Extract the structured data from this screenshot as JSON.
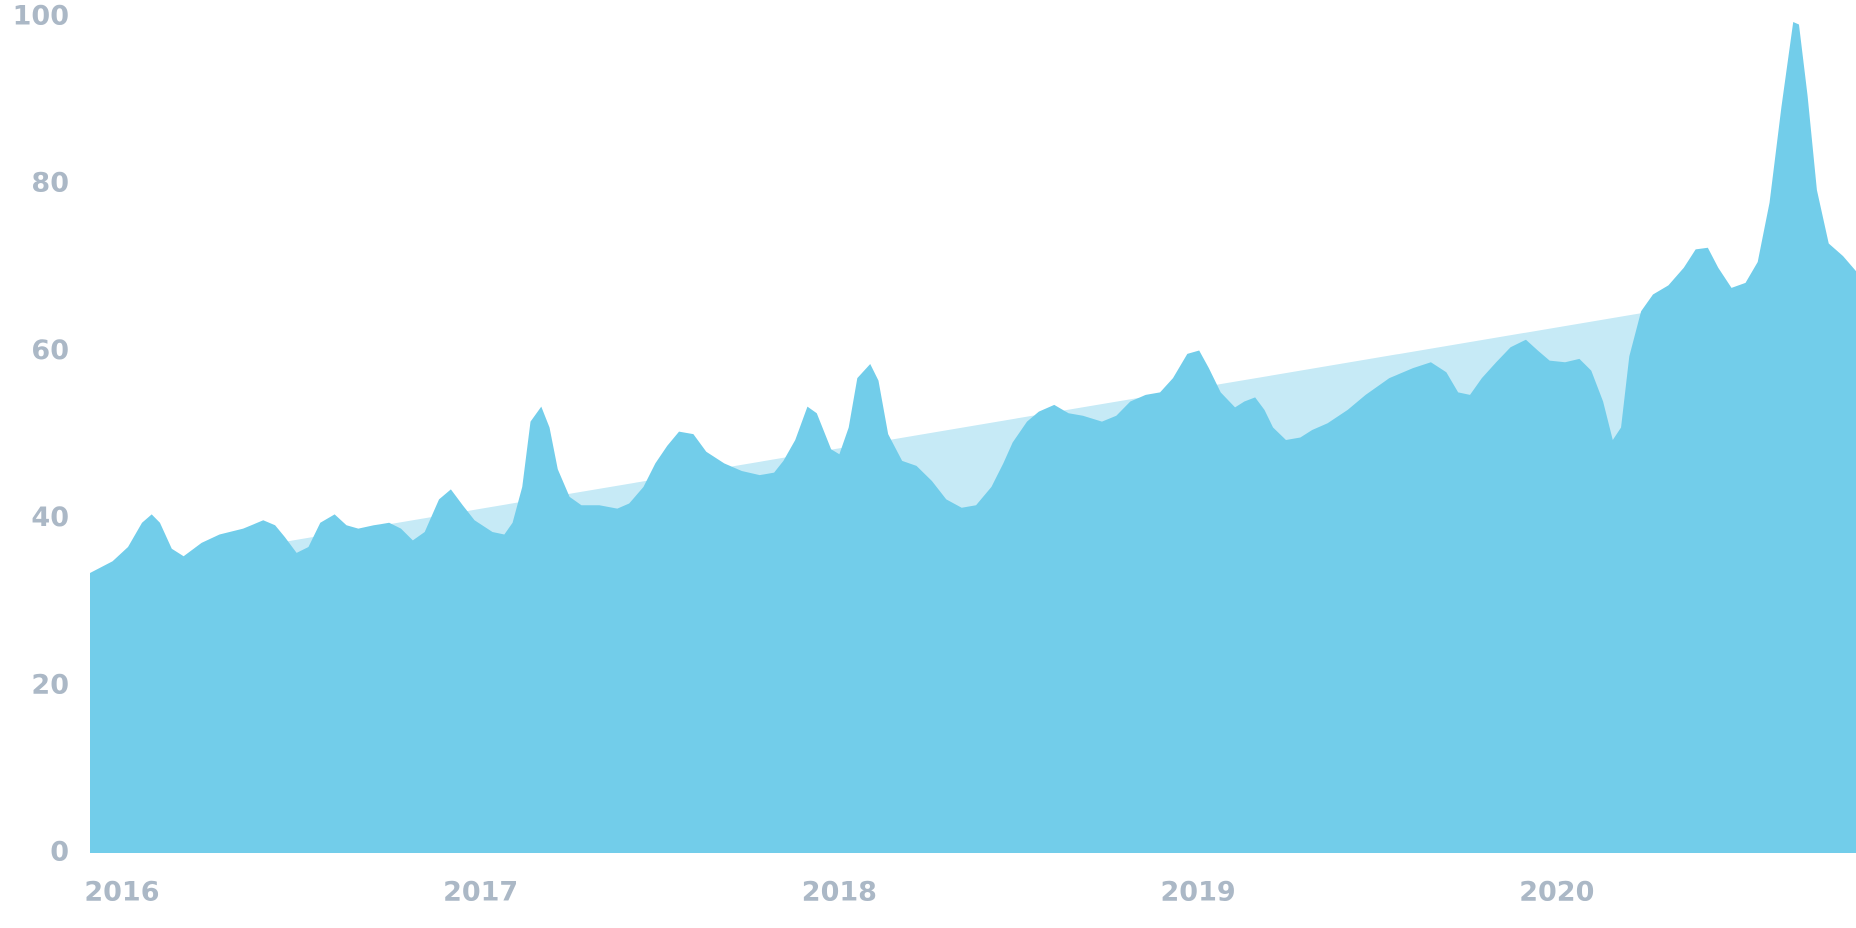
{
  "chart_data": {
    "type": "area",
    "xlim": [
      2015.911,
      2020.834
    ],
    "xticks": [
      2016,
      2017,
      2018,
      2019,
      2020
    ],
    "ylim": [
      0,
      100
    ],
    "yticks": [
      0,
      20,
      40,
      60,
      80,
      100
    ],
    "series": [
      {
        "color": "#c6eaf6",
        "x": [
          2015.911,
          2020.834
        ],
        "values": [
          33.3,
          68.9
        ]
      },
      {
        "color": "#72cdea",
        "x": [
          2015.911,
          2015.974,
          2016.017,
          2016.056,
          2016.083,
          2016.106,
          2016.139,
          2016.172,
          2016.222,
          2016.272,
          2016.338,
          2016.394,
          2016.427,
          2016.454,
          2016.487,
          2016.52,
          2016.553,
          2016.593,
          2016.626,
          2016.659,
          2016.702,
          2016.745,
          2016.778,
          2016.811,
          2016.844,
          2016.884,
          2016.917,
          2016.95,
          2016.983,
          2017.033,
          2017.066,
          2017.089,
          2017.116,
          2017.139,
          2017.169,
          2017.192,
          2017.215,
          2017.248,
          2017.281,
          2017.331,
          2017.381,
          2017.414,
          2017.454,
          2017.487,
          2017.52,
          2017.553,
          2017.593,
          2017.629,
          2017.679,
          2017.728,
          2017.778,
          2017.818,
          2017.844,
          2017.877,
          2017.911,
          2017.937,
          2017.977,
          2018,
          2018.026,
          2018.05,
          2018.086,
          2018.109,
          2018.136,
          2018.175,
          2018.215,
          2018.258,
          2018.298,
          2018.341,
          2018.381,
          2018.424,
          2018.457,
          2018.483,
          2018.523,
          2018.556,
          2018.599,
          2018.639,
          2018.679,
          2018.732,
          2018.772,
          2018.811,
          2018.854,
          2018.894,
          2018.93,
          2018.97,
          2019.003,
          2019.03,
          2019.063,
          2019.103,
          2019.129,
          2019.159,
          2019.185,
          2019.209,
          2019.245,
          2019.285,
          2019.318,
          2019.361,
          2019.417,
          2019.467,
          2019.533,
          2019.599,
          2019.649,
          2019.692,
          2019.725,
          2019.758,
          2019.791,
          2019.831,
          2019.871,
          2019.914,
          2019.947,
          2019.98,
          2020.023,
          2020.063,
          2020.096,
          2020.129,
          2020.156,
          2020.179,
          2020.202,
          2020.235,
          2020.268,
          2020.311,
          2020.354,
          2020.387,
          2020.421,
          2020.45,
          2020.487,
          2020.526,
          2020.56,
          2020.593,
          2020.626,
          2020.659,
          2020.675,
          2020.699,
          2020.725,
          2020.758,
          2020.798,
          2020.834
        ],
        "values": [
          33.5,
          34.9,
          36.6,
          39.5,
          40.5,
          39.5,
          36.4,
          35.5,
          37.1,
          38.1,
          38.8,
          39.8,
          39.2,
          37.8,
          35.9,
          36.6,
          39.5,
          40.5,
          39.2,
          38.8,
          39.2,
          39.5,
          38.8,
          37.4,
          38.4,
          42.3,
          43.5,
          41.6,
          39.8,
          38.4,
          38.1,
          39.5,
          43.8,
          51.6,
          53.4,
          50.9,
          45.9,
          42.6,
          41.6,
          41.6,
          41.2,
          41.8,
          43.8,
          46.6,
          48.7,
          50.4,
          50.1,
          48.0,
          46.6,
          45.7,
          45.2,
          45.5,
          46.9,
          49.4,
          53.4,
          52.6,
          48.3,
          47.7,
          50.9,
          56.8,
          58.5,
          56.5,
          50.1,
          46.9,
          46.3,
          44.5,
          42.3,
          41.3,
          41.6,
          43.8,
          46.6,
          49.1,
          51.6,
          52.8,
          53.6,
          52.6,
          52.3,
          51.6,
          52.3,
          54.0,
          54.8,
          55.1,
          56.8,
          59.7,
          60.1,
          58.0,
          55.1,
          53.3,
          54.0,
          54.5,
          53.0,
          50.9,
          49.4,
          49.7,
          50.6,
          51.4,
          53.0,
          54.8,
          56.8,
          58.0,
          58.7,
          57.5,
          55.1,
          54.8,
          56.8,
          58.7,
          60.5,
          61.4,
          60.1,
          58.9,
          58.7,
          59.1,
          57.7,
          54.0,
          49.4,
          50.9,
          59.4,
          64.8,
          66.8,
          67.9,
          70.0,
          72.2,
          72.4,
          70.0,
          67.6,
          68.2,
          70.7,
          77.8,
          89.2,
          99.4,
          99.1,
          90.6,
          79.3,
          72.9,
          71.4,
          69.6
        ]
      }
    ]
  }
}
